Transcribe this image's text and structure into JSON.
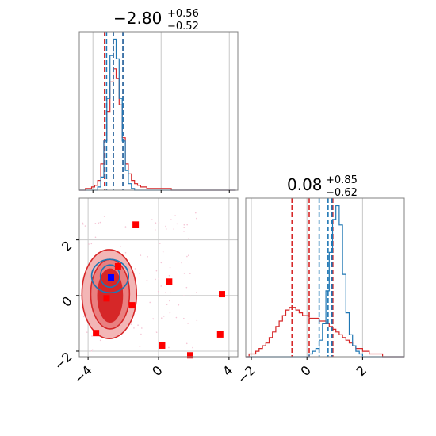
{
  "chart_data": {
    "type": "corner",
    "colors": {
      "red": "#d62728",
      "blue": "#1f77b4",
      "marker_red": "#ff0000",
      "marker_blue": "#0000ff",
      "frame": "#808080",
      "grid": "#c8c8c8"
    },
    "grid": true,
    "panels": [
      {
        "id": "marginal-1",
        "type": "histogram",
        "title": {
          "median": "−2.80",
          "plus": "+0.56",
          "minus": "−0.52"
        },
        "xlim": [
          -4.8,
          4.5
        ],
        "bin_width": 0.18,
        "series": [
          {
            "name": "",
            "color": "#d62728",
            "bin_start": -4.8,
            "counts": [
              0,
              0,
              1,
              1,
              2,
              3,
              6,
              16,
              30,
              48,
              66,
              74,
              68,
              52,
              32,
              16,
              10,
              6,
              4,
              3,
              2,
              2,
              1,
              1,
              1,
              1,
              1,
              1,
              1,
              1,
              0,
              0,
              0,
              0,
              0,
              0,
              0,
              0,
              0,
              0,
              0,
              0,
              0,
              0,
              0,
              0,
              0,
              0,
              0,
              0,
              0
            ],
            "quantiles": [
              -3.32,
              -2.8,
              -2.24
            ]
          },
          {
            "name": "",
            "color": "#1f77b4",
            "bin_start": -4.8,
            "counts": [
              0,
              0,
              0,
              0,
              0,
              0,
              2,
              8,
              30,
              56,
              82,
              92,
              80,
              56,
              30,
              12,
              4,
              1,
              0,
              0,
              0,
              0,
              0,
              0,
              0,
              0,
              0,
              0,
              0,
              0,
              0,
              0,
              0,
              0,
              0,
              0,
              0,
              0,
              0,
              0,
              0,
              0,
              0,
              0,
              0,
              0,
              0,
              0,
              0,
              0,
              0
            ],
            "quantiles": [
              -3.2,
              -2.8,
              -2.24
            ]
          }
        ]
      },
      {
        "id": "marginal-2",
        "type": "histogram",
        "title": {
          "median": "0.08",
          "plus": "+0.85",
          "minus": "−0.62"
        },
        "xlim": [
          -2.2,
          3.5
        ],
        "bin_width": 0.12,
        "series": [
          {
            "name": "",
            "color": "#d62728",
            "bin_start": -2.2,
            "counts": [
              0,
              1,
              1,
              2,
              3,
              4,
              5,
              7,
              9,
              11,
              13,
              15,
              17,
              18,
              18,
              17,
              16,
              15,
              15,
              14,
              14,
              14,
              13,
              13,
              12,
              11,
              10,
              9,
              8,
              7,
              6,
              5,
              4,
              3,
              3,
              2,
              2,
              1,
              1,
              1,
              1,
              0,
              0,
              0,
              0,
              0,
              0,
              0
            ],
            "quantiles": [
              -0.54,
              0.08,
              0.93
            ]
          },
          {
            "name": "",
            "color": "#1f77b4",
            "bin_start": -2.2,
            "counts": [
              0,
              0,
              0,
              0,
              0,
              0,
              0,
              0,
              0,
              0,
              0,
              0,
              0,
              0,
              0,
              0,
              0,
              0,
              0,
              1,
              2,
              3,
              6,
              12,
              24,
              38,
              50,
              55,
              48,
              30,
              16,
              8,
              4,
              2,
              1,
              0,
              0,
              0,
              0,
              0,
              0,
              0,
              0,
              0,
              0,
              0,
              0,
              0
            ],
            "quantiles": [
              0.44,
              0.76,
              0.9
            ]
          }
        ]
      },
      {
        "id": "joint",
        "type": "contour-scatter",
        "xlim": [
          -4.5,
          4.5
        ],
        "ylim": [
          -2.2,
          3.5
        ],
        "xticks": [
          "−4",
          "0",
          "4"
        ],
        "xtick_values": [
          -4,
          0,
          4
        ],
        "yticks": [
          "−2",
          "0",
          "2"
        ],
        "ytick_values": [
          -2,
          0,
          2
        ],
        "contours": [
          {
            "color": "#d62728",
            "cx": -2.8,
            "cy": 0.05,
            "rx": 1.55,
            "ry": 1.6,
            "fill": "#f3b6b6"
          },
          {
            "color": "#d62728",
            "cx": -2.75,
            "cy": 0.05,
            "rx": 1.1,
            "ry": 1.25,
            "fill": "#e98080"
          },
          {
            "color": "#d62728",
            "cx": -2.75,
            "cy": 0.0,
            "rx": 0.7,
            "ry": 0.95,
            "fill": "#d62728"
          },
          {
            "color": "#1f77b4",
            "cx": -2.75,
            "cy": 0.7,
            "rx": 1.05,
            "ry": 0.6,
            "fill": "none"
          },
          {
            "color": "#1f77b4",
            "cx": -2.75,
            "cy": 0.7,
            "rx": 0.55,
            "ry": 0.4,
            "fill": "none"
          }
        ],
        "points_red": [
          [
            -1.3,
            2.55
          ],
          [
            -2.3,
            1.05
          ],
          [
            0.6,
            0.5
          ],
          [
            -2.95,
            -0.1
          ],
          [
            -1.5,
            -0.35
          ],
          [
            3.6,
            0.05
          ],
          [
            -3.55,
            -1.35
          ],
          [
            3.5,
            -1.4
          ],
          [
            0.2,
            -1.8
          ],
          [
            1.8,
            -2.15
          ]
        ],
        "points_blue": [
          [
            -2.7,
            0.65
          ]
        ]
      }
    ],
    "marginal2_xticks": [
      "−2",
      "0",
      "2"
    ],
    "marginal2_xtick_values": [
      -2,
      0,
      2
    ]
  }
}
